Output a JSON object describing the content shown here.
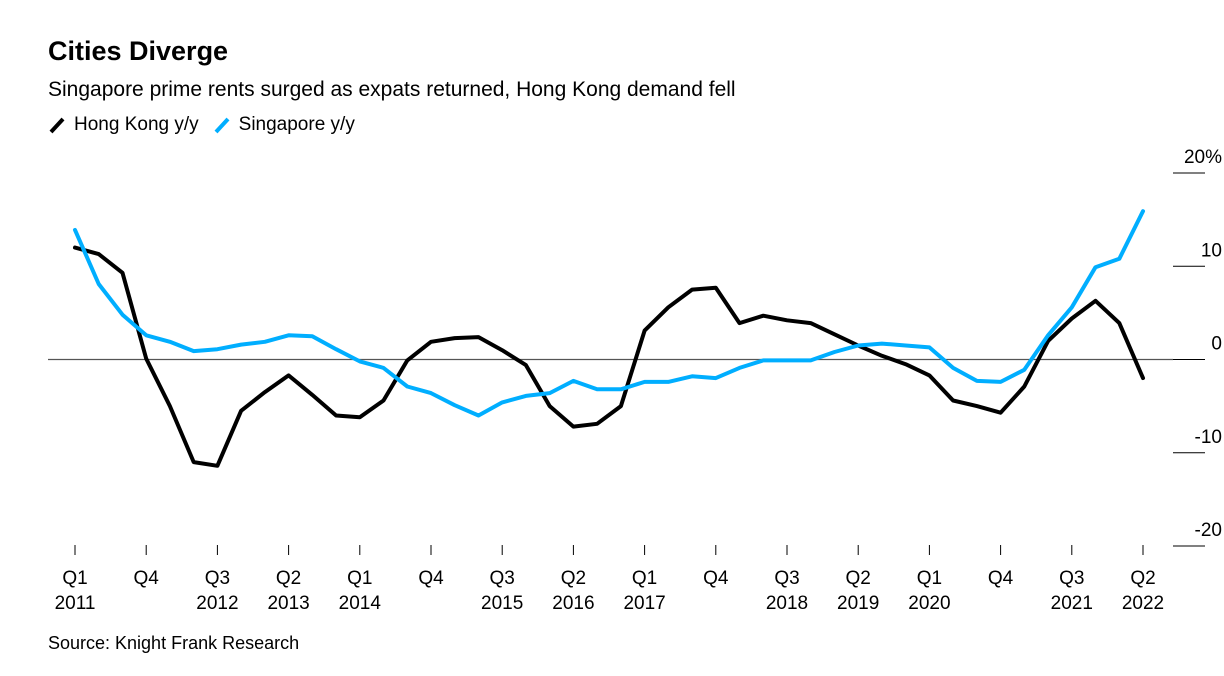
{
  "chart_data": {
    "type": "line",
    "title": "Cities Diverge",
    "subtitle": "Singapore prime rents surged as expats returned, Hong Kong demand fell",
    "source": "Source: Knight Frank Research",
    "ylim": [
      -20,
      20
    ],
    "y_ticks": [
      {
        "value": 20,
        "label": "20%"
      },
      {
        "value": 10,
        "label": "10"
      },
      {
        "value": 0,
        "label": "0"
      },
      {
        "value": -10,
        "label": "-10"
      },
      {
        "value": -20,
        "label": "-20"
      }
    ],
    "y_axis_side": "right",
    "grid": false,
    "legend_placement": "top-left",
    "x": [
      "2011 Q1",
      "2011 Q2",
      "2011 Q3",
      "2011 Q4",
      "2012 Q1",
      "2012 Q2",
      "2012 Q3",
      "2012 Q4",
      "2013 Q1",
      "2013 Q2",
      "2013 Q3",
      "2013 Q4",
      "2014 Q1",
      "2014 Q2",
      "2014 Q3",
      "2014 Q4",
      "2015 Q1",
      "2015 Q2",
      "2015 Q3",
      "2015 Q4",
      "2016 Q1",
      "2016 Q2",
      "2016 Q3",
      "2016 Q4",
      "2017 Q1",
      "2017 Q2",
      "2017 Q3",
      "2017 Q4",
      "2018 Q1",
      "2018 Q2",
      "2018 Q3",
      "2018 Q4",
      "2019 Q1",
      "2019 Q2",
      "2019 Q3",
      "2019 Q4",
      "2020 Q1",
      "2020 Q2",
      "2020 Q3",
      "2020 Q4",
      "2021 Q1",
      "2021 Q2",
      "2021 Q3",
      "2021 Q4",
      "2022 Q1",
      "2022 Q2"
    ],
    "x_ticks": [
      {
        "index": 0,
        "q": "Q1",
        "year": "2011"
      },
      {
        "index": 3,
        "q": "Q4",
        "year": ""
      },
      {
        "index": 6,
        "q": "Q3",
        "year": "2012"
      },
      {
        "index": 9,
        "q": "Q2",
        "year": "2013"
      },
      {
        "index": 12,
        "q": "Q1",
        "year": "2014"
      },
      {
        "index": 15,
        "q": "Q4",
        "year": ""
      },
      {
        "index": 18,
        "q": "Q3",
        "year": "2015"
      },
      {
        "index": 21,
        "q": "Q2",
        "year": "2016"
      },
      {
        "index": 24,
        "q": "Q1",
        "year": "2017"
      },
      {
        "index": 27,
        "q": "Q4",
        "year": ""
      },
      {
        "index": 30,
        "q": "Q3",
        "year": "2018"
      },
      {
        "index": 33,
        "q": "Q2",
        "year": "2019"
      },
      {
        "index": 36,
        "q": "Q1",
        "year": "2020"
      },
      {
        "index": 39,
        "q": "Q4",
        "year": ""
      },
      {
        "index": 42,
        "q": "Q3",
        "year": "2021"
      },
      {
        "index": 45,
        "q": "Q2",
        "year": "2022"
      }
    ],
    "series": [
      {
        "name": "Hong Kong y/y",
        "color": "#000000",
        "values": [
          12.0,
          11.3,
          9.3,
          0.1,
          -5.0,
          -11.0,
          -11.4,
          -5.5,
          -3.5,
          -1.7,
          -3.8,
          -6.0,
          -6.2,
          -4.4,
          -0.1,
          1.9,
          2.3,
          2.4,
          1.0,
          -0.6,
          -5.0,
          -7.2,
          -6.9,
          -5.0,
          3.1,
          5.6,
          7.5,
          7.7,
          3.9,
          4.7,
          4.2,
          3.9,
          2.7,
          1.5,
          0.4,
          -0.5,
          -1.7,
          -4.4,
          -5.0,
          -5.7,
          -2.9,
          2.0,
          4.4,
          6.3,
          3.9,
          -2.0
        ]
      },
      {
        "name": "Singapore y/y",
        "color": "#00AEFF",
        "values": [
          13.9,
          8.1,
          4.8,
          2.6,
          1.9,
          0.9,
          1.1,
          1.6,
          1.9,
          2.6,
          2.5,
          1.1,
          -0.2,
          -0.9,
          -2.9,
          -3.6,
          -4.9,
          -6.0,
          -4.6,
          -3.9,
          -3.6,
          -2.3,
          -3.2,
          -3.2,
          -2.4,
          -2.4,
          -1.8,
          -2.0,
          -0.9,
          -0.1,
          -0.1,
          -0.1,
          0.8,
          1.5,
          1.7,
          1.5,
          1.3,
          -0.9,
          -2.3,
          -2.4,
          -1.1,
          2.6,
          5.6,
          9.9,
          10.8,
          15.9
        ]
      }
    ]
  }
}
